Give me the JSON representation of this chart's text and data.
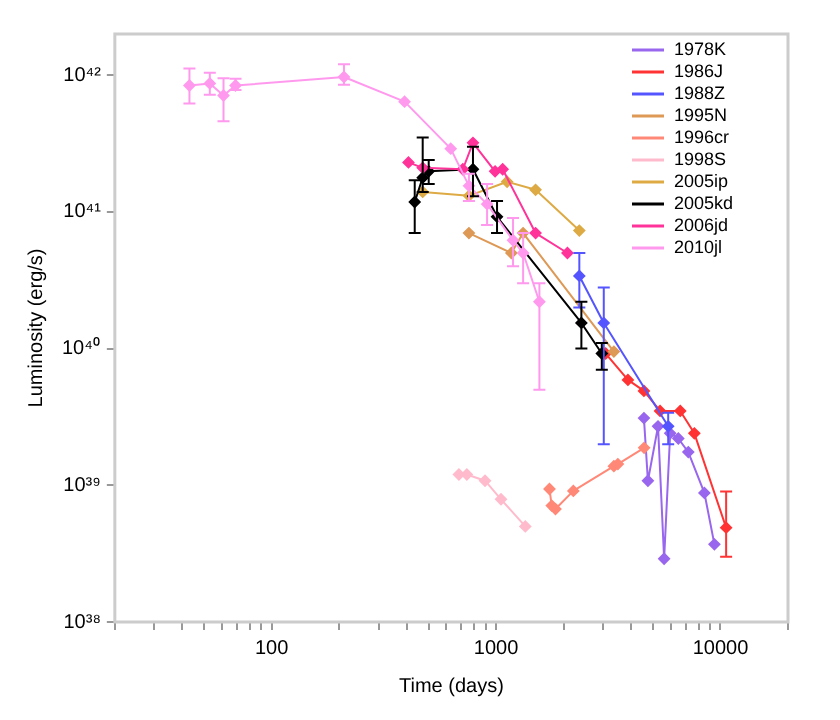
{
  "chart_data": {
    "type": "line",
    "xlabel": "Time (days)",
    "ylabel": "Luminosity (erg/s)",
    "log": "xy",
    "legend": "top right",
    "marker": "diamond",
    "xlim": [
      20,
      20000
    ],
    "ylim": [
      1e+38,
      2e+42
    ],
    "xticks": [
      {
        "value": 20,
        "label": null
      },
      {
        "value": 30,
        "label": null
      },
      {
        "value": 40,
        "label": null
      },
      {
        "value": 50,
        "label": null
      },
      {
        "value": 60,
        "label": null
      },
      {
        "value": 70,
        "label": null
      },
      {
        "value": 80,
        "label": null
      },
      {
        "value": 90,
        "label": null
      },
      100,
      {
        "value": 200,
        "label": null
      },
      {
        "value": 300,
        "label": null
      },
      {
        "value": 400,
        "label": null
      },
      {
        "value": 500,
        "label": null
      },
      {
        "value": 600,
        "label": null
      },
      {
        "value": 700,
        "label": null
      },
      {
        "value": 800,
        "label": null
      },
      {
        "value": 900,
        "label": null
      },
      1000,
      {
        "value": 2000,
        "label": null
      },
      {
        "value": 3000,
        "label": null
      },
      {
        "value": 4000,
        "label": null
      },
      {
        "value": 5000,
        "label": null
      },
      {
        "value": 6000,
        "label": null
      },
      {
        "value": 7000,
        "label": null
      },
      {
        "value": 8000,
        "label": null
      },
      {
        "value": 9000,
        "label": null
      },
      10000,
      {
        "value": 20000,
        "label": null
      }
    ],
    "yticks": [
      {
        "value": 1e+38,
        "label": "10³⁸"
      },
      {
        "value": 1e+39,
        "label": "10³⁹"
      },
      {
        "value": 1e+40,
        "label": "10⁴⁰"
      },
      {
        "value": 1e+41,
        "label": "10⁴¹"
      },
      {
        "value": 1e+42,
        "label": "10⁴²"
      }
    ],
    "series": [
      {
        "name": "1978K",
        "color": "#9966ee",
        "x": [
          4560,
          4750,
          5270,
          5610,
          5970,
          6490,
          7190,
          8480,
          9400
        ],
        "values": [
          3.1e+39,
          1.08e+39,
          2.7e+39,
          2.9e+38,
          2.4e+39,
          2.2e+39,
          1.75e+39,
          8.8e+38,
          3.7e+38
        ]
      },
      {
        "name": "1986J",
        "color": "#ff3333",
        "x": [
          3080,
          3870,
          4560,
          5380,
          6620,
          7650,
          10600
        ],
        "values": [
          9.2e+39,
          5.9e+39,
          4.9e+39,
          3.5e+39,
          3.5e+39,
          2.4e+39,
          4.9e+38
        ],
        "errors": [
          null,
          null,
          null,
          null,
          null,
          null,
          [
            3e+38,
            9e+38
          ]
        ]
      },
      {
        "name": "1988Z",
        "color": "#5555ff",
        "x": [
          2350,
          3020,
          5850
        ],
        "values": [
          3.4e+40,
          1.54e+40,
          2.7e+39
        ],
        "errors": [
          [
            2e+40,
            5e+40
          ],
          [
            2e+39,
            2.8e+40
          ],
          [
            2e+39,
            3.4e+39
          ]
        ]
      },
      {
        "name": "1995N",
        "color": "#dd9955",
        "x": [
          757,
          1170,
          1320,
          3350
        ],
        "values": [
          7e+40,
          5e+40,
          7e+40,
          9.5e+39
        ]
      },
      {
        "name": "1996cr",
        "color": "#ff8877",
        "x": [
          1730,
          1770,
          1840,
          2210,
          3350,
          3490,
          4570
        ],
        "values": [
          9.4e+38,
          7.1e+38,
          6.7e+38,
          9.1e+38,
          1.38e+39,
          1.43e+39,
          1.88e+39
        ]
      },
      {
        "name": "1998S",
        "color": "#ffbbcc",
        "x": [
          683,
          741,
          893,
          1052,
          1350
        ],
        "values": [
          1.2e+39,
          1.2e+39,
          1.08e+39,
          7.9e+38,
          5e+38
        ]
      },
      {
        "name": "2005ip",
        "color": "#ddaa44",
        "x": [
          471,
          757,
          1120,
          1500,
          2350
        ],
        "values": [
          1.4e+41,
          1.31e+41,
          1.66e+41,
          1.45e+41,
          7.3e+40
        ]
      },
      {
        "name": "2005kd",
        "color": "#000000",
        "x": [
          434,
          471,
          501,
          789,
          1010,
          2400,
          2960
        ],
        "values": [
          1.18e+41,
          1.78e+41,
          1.98e+41,
          2.05e+41,
          9.2e+40,
          1.54e+40,
          9.2e+39
        ],
        "errors": [
          [
            7e+40,
            1.7e+41
          ],
          [
            1.4e+41,
            3.5e+41
          ],
          [
            1.6e+41,
            2.4e+41
          ],
          [
            1.3e+41,
            3e+41
          ],
          [
            7e+40,
            1.2e+41
          ],
          [
            1e+40,
            2.2e+40
          ],
          [
            7e+39,
            1.1e+40
          ]
        ]
      },
      {
        "name": "2006jd",
        "color": "#ff3399",
        "x": [
          407,
          471,
          711,
          789,
          990,
          1070,
          1500,
          2080
        ],
        "values": [
          2.3e+41,
          2.1e+41,
          2.05e+41,
          3.2e+41,
          1.98e+41,
          2.05e+41,
          7e+40,
          5e+40
        ]
      },
      {
        "name": "2010jl",
        "color": "#ff99ee",
        "x": [
          43,
          53,
          61,
          69,
          210,
          391,
          628,
          757,
          912,
          1190,
          1320,
          1560
        ],
        "values": [
          8.4e+41,
          8.7e+41,
          7.1e+41,
          8.4e+41,
          9.7e+41,
          6.4e+41,
          2.9e+41,
          1.55e+41,
          1.14e+41,
          6.2e+40,
          5e+40,
          2.2e+40
        ],
        "errors": [
          [
            6.2e+41,
            1.12e+42
          ],
          [
            7.2e+41,
            1.04e+42
          ],
          [
            4.6e+41,
            9.5e+41
          ],
          [
            7.8e+41,
            9.4e+41
          ],
          [
            8.5e+41,
            1.2e+42
          ],
          null,
          null,
          [
            1.2e+41,
            1.9e+41
          ],
          [
            8e+40,
            1.6e+41
          ],
          [
            4e+40,
            9e+40
          ],
          [
            3e+40,
            7e+40
          ],
          [
            5e+39,
            3e+40
          ]
        ]
      }
    ]
  }
}
